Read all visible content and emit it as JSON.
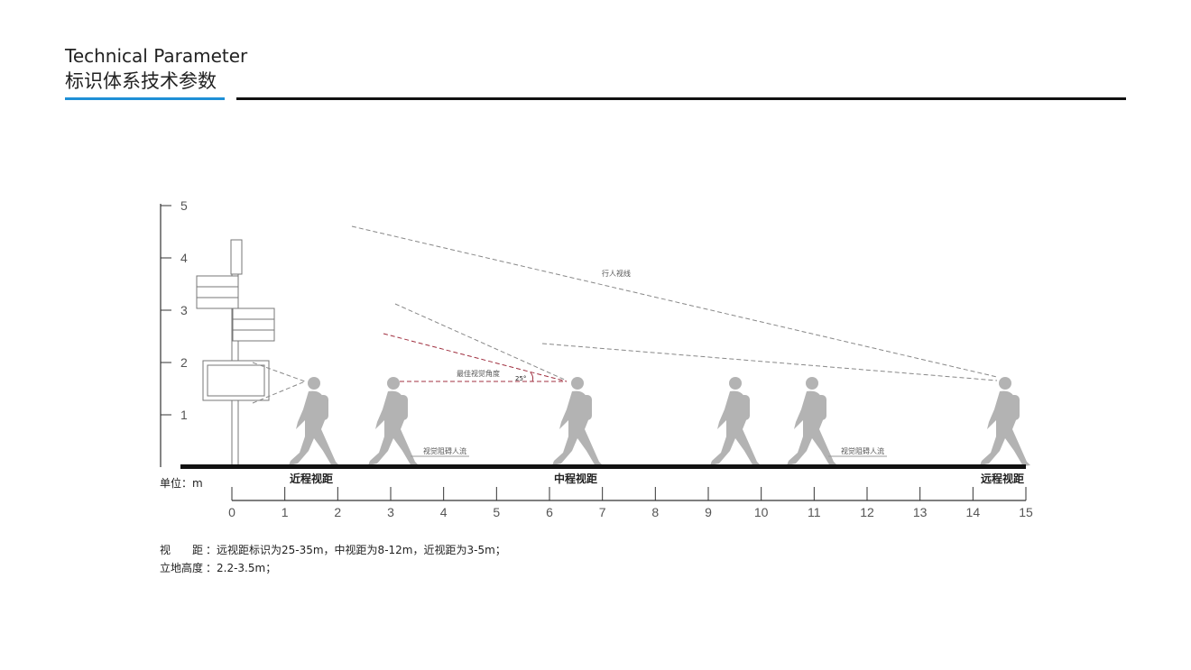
{
  "header": {
    "title_en": "Technical Parameter",
    "title_cn": "标识体系技术参数"
  },
  "diagram": {
    "y_axis": {
      "labels": [
        1,
        2,
        3,
        4,
        5
      ]
    },
    "x_axis": {
      "unit": "单位：m",
      "labels": [
        0,
        1,
        2,
        3,
        4,
        5,
        6,
        7,
        8,
        9,
        10,
        11,
        12,
        13,
        14,
        15
      ]
    },
    "zones": [
      "近程视距",
      "中程视距",
      "远程视距"
    ],
    "annotations": {
      "sight_line": "行人视线",
      "best_angle": "最佳视觉角度",
      "angle": "25°",
      "obstruction_1": "视觉阻碍人流",
      "obstruction_2": "视觉阻碍人流"
    }
  },
  "notes": [
    {
      "label": "视　　距",
      "text": "：远视距标识为25-35m，中视距为8-12m，近视距为3-5m；"
    },
    {
      "label": "立地高度",
      "text": "：2.2-3.5m；"
    }
  ]
}
